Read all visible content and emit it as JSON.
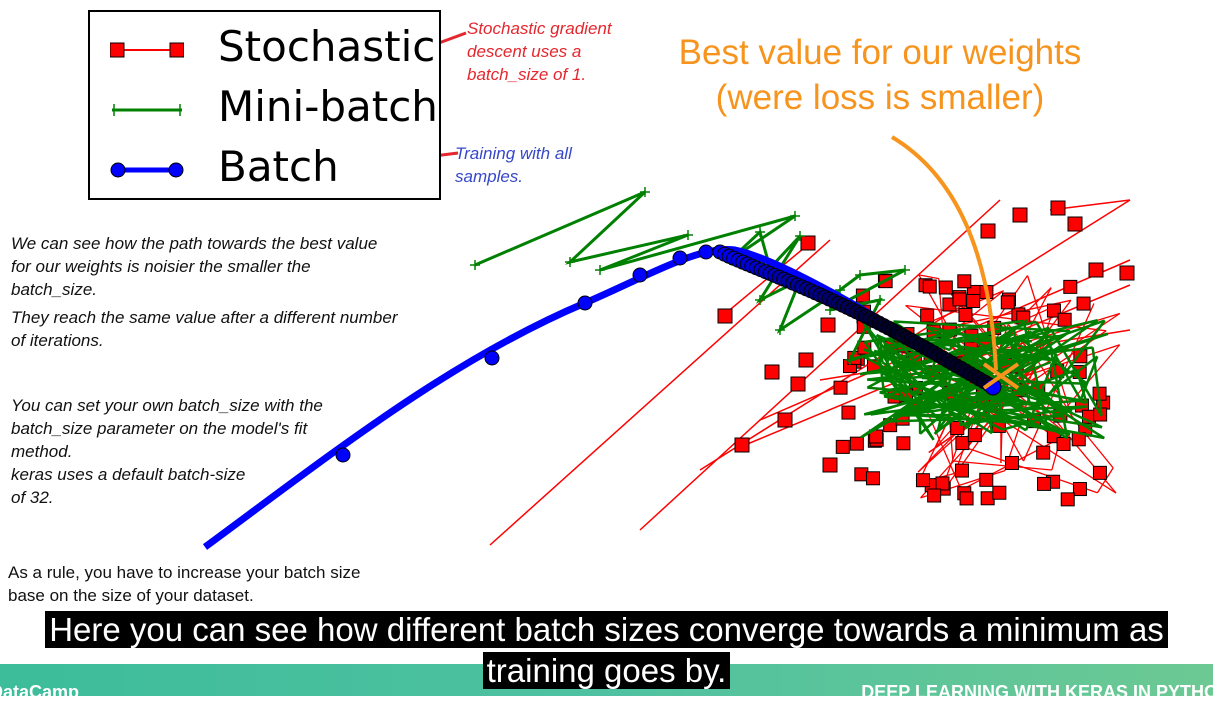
{
  "legend": {
    "items": [
      {
        "label": "Stochastic",
        "color": "#ff0000",
        "marker": "square"
      },
      {
        "label": "Mini-batch",
        "color": "#008000",
        "marker": "plus"
      },
      {
        "label": "Batch",
        "color": "#0000ff",
        "marker": "circle"
      }
    ]
  },
  "annotations": {
    "stochastic_note": "Stochastic gradient\ndescent uses a\nbatch_size of 1.",
    "batch_note": "Training with all\nsamples.",
    "best_value": "Best value for our weights\n(were loss is smaller)",
    "best_value_color": "#f7941d"
  },
  "text": {
    "paragraph1": "We can see how the path towards the best value\nfor our weights is noisier the smaller the\nbatch_size.",
    "paragraph2": "They reach the same value after a different number\nof iterations.",
    "paragraph3": "You can set your own batch_size with the\nbatch_size parameter on the model's fit\nmethod.\nkeras uses a default batch-size\nof 32.",
    "rule": "As a rule, you have to increase your batch size\nbase on the size of your dataset."
  },
  "footer": {
    "brand": "DataCamp",
    "course": "DEEP LEARNING WITH KERAS IN PYTHON"
  },
  "caption": {
    "line1": "Here you can see how different batch sizes converge towards a minimum as",
    "line2": "training goes by."
  }
}
